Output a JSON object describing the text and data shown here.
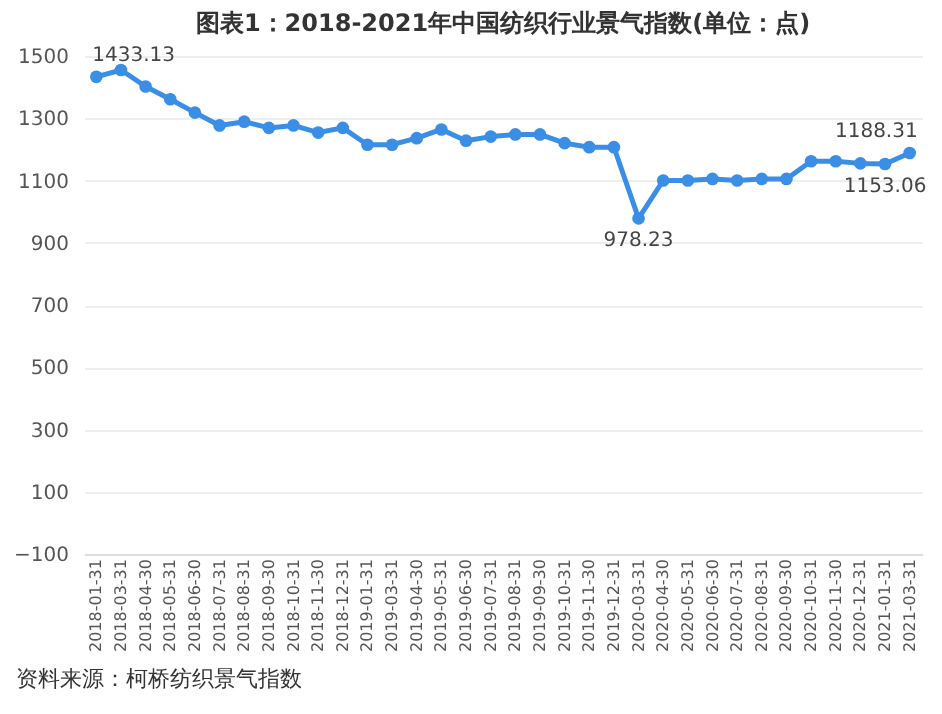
{
  "chart_data": {
    "type": "line",
    "title": "图表1：2018-2021年中国纺织行业景气指数(单位：点)",
    "categories": [
      "2018-01-31",
      "2018-03-31",
      "2018-04-30",
      "2018-05-31",
      "2018-06-30",
      "2018-07-31",
      "2018-08-31",
      "2018-09-30",
      "2018-10-31",
      "2018-11-30",
      "2018-12-31",
      "2019-01-31",
      "2019-03-31",
      "2019-04-30",
      "2019-05-31",
      "2019-06-30",
      "2019-07-31",
      "2019-08-31",
      "2019-09-30",
      "2019-10-31",
      "2019-11-30",
      "2019-12-31",
      "2020-03-31",
      "2020-04-30",
      "2020-05-31",
      "2020-06-30",
      "2020-07-31",
      "2020-08-31",
      "2020-09-30",
      "2020-10-31",
      "2020-11-30",
      "2020-12-31",
      "2021-01-31",
      "2021-03-31"
    ],
    "series": [
      {
        "color": "#3a8ee6",
        "values": [
          1433.13,
          1455,
          1402,
          1361,
          1318,
          1277,
          1289,
          1269,
          1277,
          1254,
          1269,
          1215,
          1215,
          1236,
          1264,
          1228,
          1241,
          1248,
          1248,
          1220,
          1207,
          1207,
          978.23,
          1100,
          1100,
          1105,
          1100,
          1105,
          1105,
          1162,
          1162,
          1155,
          1153.06,
          1188.31
        ],
        "value_labels": [
          "1433.13",
          null,
          null,
          null,
          null,
          null,
          null,
          null,
          null,
          null,
          null,
          null,
          null,
          null,
          null,
          null,
          null,
          null,
          null,
          null,
          null,
          null,
          "978.23",
          null,
          null,
          null,
          null,
          null,
          null,
          null,
          null,
          null,
          "1153.06",
          "1188.31"
        ]
      }
    ],
    "ylim": [
      -100,
      1500
    ],
    "yticks": [
      -100,
      100,
      300,
      500,
      700,
      900,
      1100,
      1300,
      1500
    ],
    "grid": "y",
    "marker": "circle",
    "line_style": "solid",
    "annotations": [
      "资料来源：柯桥纺织景气指数"
    ]
  }
}
